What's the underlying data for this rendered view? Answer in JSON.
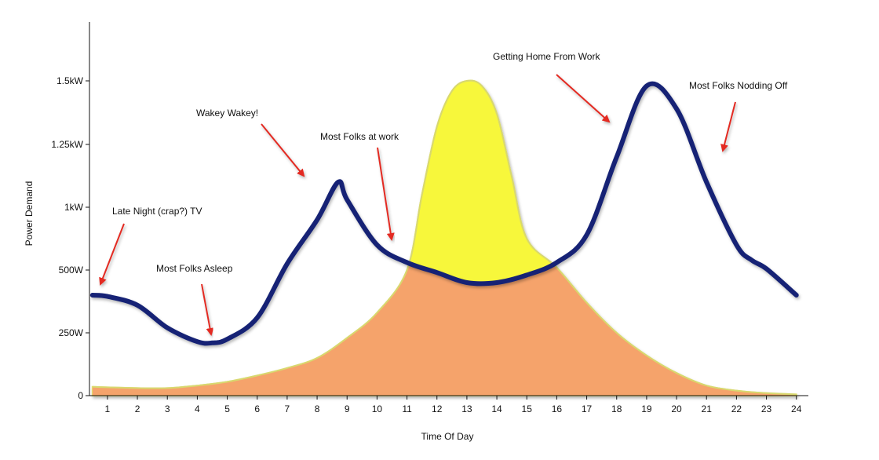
{
  "chart_data": {
    "type": "line",
    "title": "",
    "xlabel": "Time Of Day",
    "ylabel": "Power Demand",
    "xlim": [
      0.4,
      24.4
    ],
    "ylim": [
      0,
      1750
    ],
    "x_ticks": [
      1,
      2,
      3,
      4,
      5,
      6,
      7,
      8,
      9,
      10,
      11,
      12,
      13,
      14,
      15,
      16,
      17,
      18,
      19,
      20,
      21,
      22,
      23,
      24
    ],
    "x_tick_labels": [
      "1",
      "2",
      "3",
      "4",
      "5",
      "6",
      "7",
      "8",
      "9",
      "10",
      "11",
      "12",
      "13",
      "14",
      "15",
      "16",
      "17",
      "18",
      "19",
      "20",
      "21",
      "22",
      "23",
      "24"
    ],
    "y_ticks": [
      0,
      250,
      500,
      1000,
      1250,
      1500
    ],
    "y_tick_labels": [
      "0",
      "250W",
      "500W",
      "1kW",
      "1.25kW",
      "1.5kW"
    ],
    "grid": false,
    "series": [
      {
        "name": "",
        "kind": "area",
        "fill": "#f7f73a",
        "overlap_fill": "#f5a36b",
        "x": [
          0.5,
          2,
          3,
          4,
          5,
          6,
          7,
          8,
          9,
          10,
          11,
          11.5,
          12,
          12.5,
          13,
          13.5,
          14,
          14.5,
          15,
          16,
          17,
          18,
          19,
          20,
          21,
          22,
          23,
          24
        ],
        "y": [
          35,
          30,
          30,
          40,
          55,
          80,
          110,
          150,
          230,
          330,
          500,
          1050,
          1320,
          1460,
          1500,
          1480,
          1370,
          1120,
          750,
          520,
          370,
          250,
          160,
          90,
          40,
          20,
          10,
          5
        ]
      },
      {
        "name": "",
        "kind": "line",
        "color": "#142475",
        "x": [
          0.5,
          1,
          2,
          3,
          4,
          4.5,
          5,
          6,
          7,
          8,
          8.7,
          9,
          10,
          11,
          12,
          13,
          14,
          15,
          16,
          17,
          18,
          19,
          20,
          21,
          22,
          22.5,
          23,
          24
        ],
        "y": [
          400,
          395,
          360,
          270,
          215,
          210,
          225,
          310,
          550,
          900,
          1100,
          1030,
          700,
          560,
          490,
          450,
          450,
          480,
          560,
          780,
          1200,
          1480,
          1390,
          1100,
          700,
          580,
          510,
          400
        ]
      }
    ],
    "annotations": [
      {
        "text": "Late Night (crap?) TV",
        "x": 0.9,
        "y": 410
      },
      {
        "text": "Most Folks Asleep",
        "x": 4.3,
        "y": 220
      },
      {
        "text": "Wakey Wakey!",
        "x": 8.3,
        "y": 930
      },
      {
        "text": "Most Folks at work",
        "x": 11.1,
        "y": 610
      },
      {
        "text": "Getting Home From Work",
        "x": 17.8,
        "y": 1090
      },
      {
        "text": "Most Folks Nodding Off",
        "x": 21.1,
        "y": 990
      }
    ],
    "legend": "none",
    "colors": {
      "axis": "#111111",
      "line": "#142475",
      "area": "#f7f73a",
      "overlap": "#f5a36b",
      "arrow": "#e32b22"
    }
  }
}
